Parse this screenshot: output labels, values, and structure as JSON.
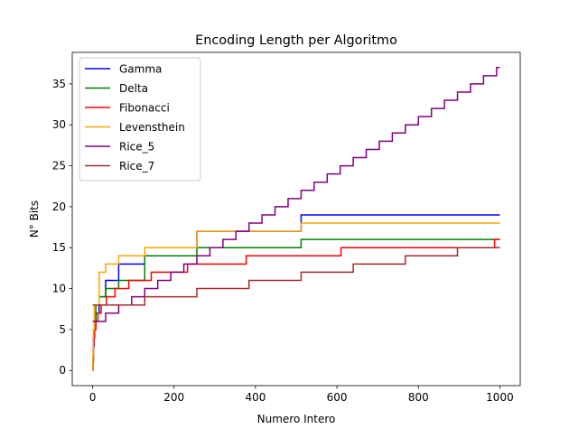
{
  "chart_data": {
    "type": "line",
    "title": "Encoding Length per Algoritmo",
    "xlabel": "Numero Intero",
    "ylabel": "N° Bits",
    "xlim": [
      -50,
      1050
    ],
    "ylim": [
      -1.85,
      38.85
    ],
    "xticks": [
      0,
      200,
      400,
      600,
      800,
      1000
    ],
    "yticks": [
      0,
      5,
      10,
      15,
      20,
      25,
      30,
      35
    ],
    "grid": false,
    "legend_position": "top-left",
    "line_style": "step",
    "series": [
      {
        "name": "Gamma",
        "color": "#0000ff",
        "points": [
          [
            0,
            0
          ],
          [
            1,
            1
          ],
          [
            2,
            3
          ],
          [
            4,
            5
          ],
          [
            8,
            7
          ],
          [
            16,
            9
          ],
          [
            32,
            11
          ],
          [
            64,
            13
          ],
          [
            128,
            15
          ],
          [
            256,
            17
          ],
          [
            512,
            19
          ],
          [
            1000,
            19
          ]
        ]
      },
      {
        "name": "Delta",
        "color": "#008000",
        "points": [
          [
            0,
            0
          ],
          [
            1,
            1
          ],
          [
            2,
            4
          ],
          [
            4,
            5
          ],
          [
            8,
            8
          ],
          [
            16,
            9
          ],
          [
            32,
            10
          ],
          [
            64,
            11
          ],
          [
            128,
            14
          ],
          [
            256,
            15
          ],
          [
            512,
            16
          ],
          [
            1000,
            16
          ]
        ]
      },
      {
        "name": "Fibonacci",
        "color": "#ff0000",
        "points": [
          [
            0,
            0
          ],
          [
            1,
            2
          ],
          [
            2,
            3
          ],
          [
            3,
            4
          ],
          [
            5,
            5
          ],
          [
            8,
            6
          ],
          [
            13,
            7
          ],
          [
            21,
            8
          ],
          [
            34,
            9
          ],
          [
            55,
            10
          ],
          [
            89,
            11
          ],
          [
            144,
            12
          ],
          [
            233,
            13
          ],
          [
            377,
            14
          ],
          [
            610,
            15
          ],
          [
            987,
            16
          ],
          [
            1000,
            16
          ]
        ]
      },
      {
        "name": "Levensthein",
        "color": "#ffa500",
        "points": [
          [
            0,
            0
          ],
          [
            1,
            2
          ],
          [
            2,
            5
          ],
          [
            4,
            8
          ],
          [
            16,
            12
          ],
          [
            32,
            13
          ],
          [
            64,
            14
          ],
          [
            128,
            15
          ],
          [
            256,
            17
          ],
          [
            512,
            18
          ],
          [
            1000,
            18
          ]
        ]
      },
      {
        "name": "Rice_5",
        "color": "#800080",
        "points": [
          [
            0,
            6
          ],
          [
            32,
            7
          ],
          [
            64,
            8
          ],
          [
            96,
            9
          ],
          [
            128,
            10
          ],
          [
            160,
            11
          ],
          [
            192,
            12
          ],
          [
            224,
            13
          ],
          [
            256,
            14
          ],
          [
            288,
            15
          ],
          [
            320,
            16
          ],
          [
            352,
            17
          ],
          [
            384,
            18
          ],
          [
            416,
            19
          ],
          [
            448,
            20
          ],
          [
            480,
            21
          ],
          [
            512,
            22
          ],
          [
            544,
            23
          ],
          [
            576,
            24
          ],
          [
            608,
            25
          ],
          [
            640,
            26
          ],
          [
            672,
            27
          ],
          [
            704,
            28
          ],
          [
            736,
            29
          ],
          [
            768,
            30
          ],
          [
            800,
            31
          ],
          [
            832,
            32
          ],
          [
            864,
            33
          ],
          [
            896,
            34
          ],
          [
            928,
            35
          ],
          [
            960,
            36
          ],
          [
            992,
            37
          ],
          [
            1000,
            37
          ]
        ]
      },
      {
        "name": "Rice_7",
        "color": "#a52a2a",
        "points": [
          [
            0,
            8
          ],
          [
            128,
            9
          ],
          [
            256,
            10
          ],
          [
            384,
            11
          ],
          [
            512,
            12
          ],
          [
            640,
            13
          ],
          [
            768,
            14
          ],
          [
            896,
            15
          ],
          [
            1000,
            15
          ]
        ]
      }
    ]
  }
}
